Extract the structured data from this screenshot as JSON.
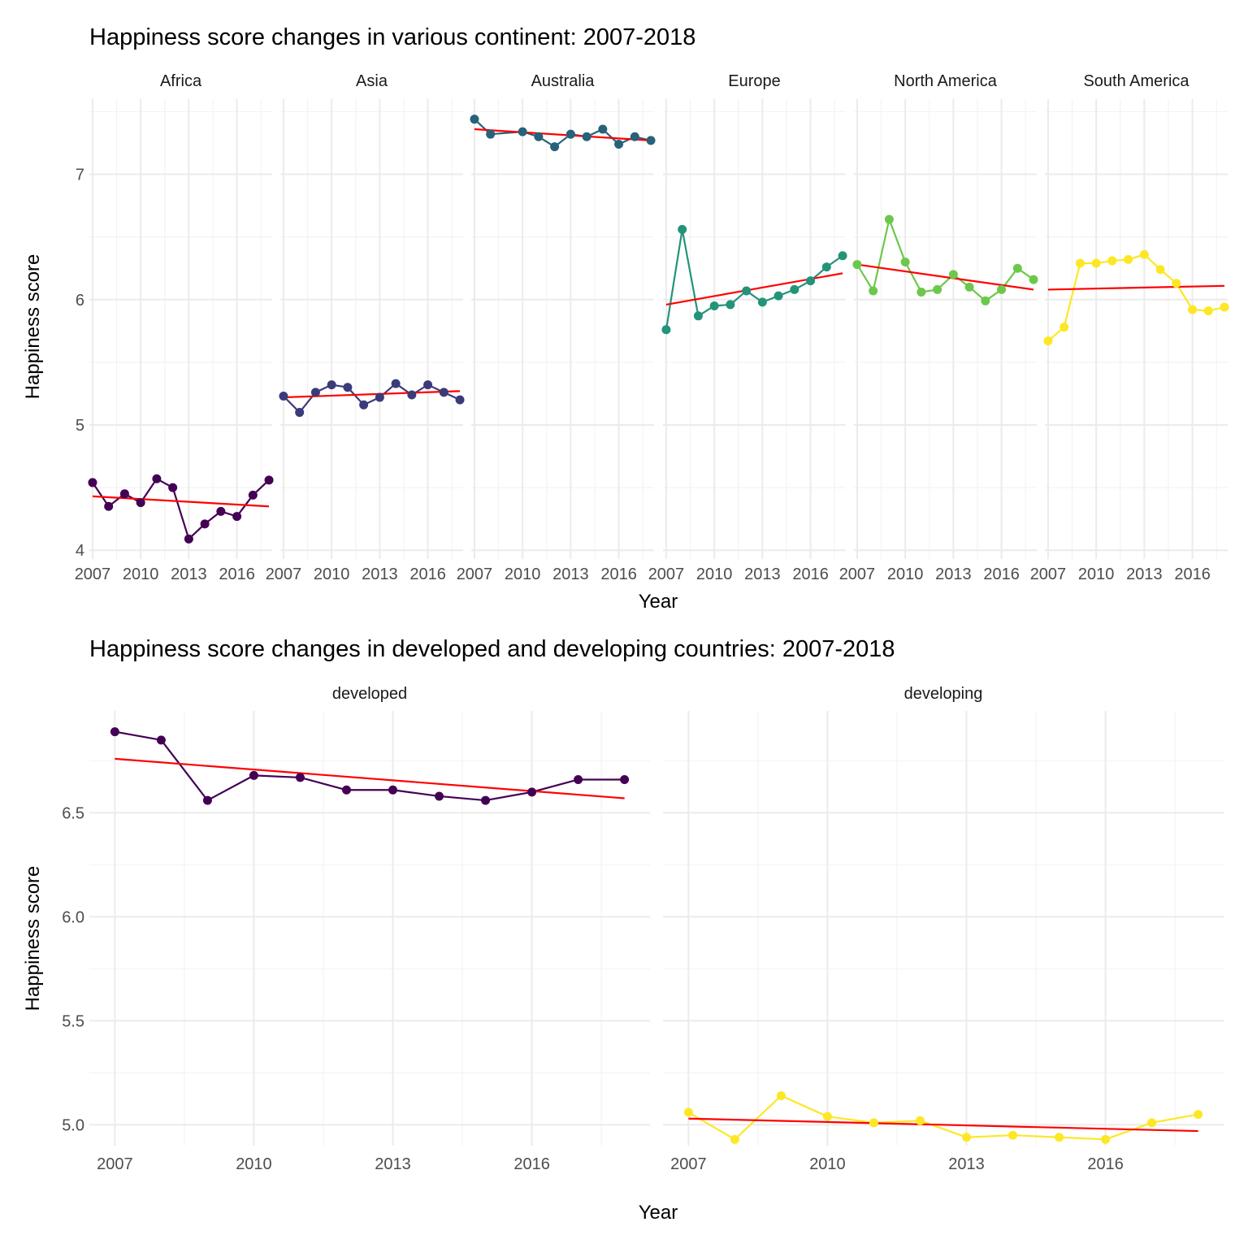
{
  "colors": {
    "trend": "#ff0000",
    "grid_major": "#ebebeb",
    "grid_minor": "#f3f3f3"
  },
  "chart_data": [
    {
      "type": "line",
      "title": "Happiness score changes in various continent: 2007-2018",
      "xlabel": "Year",
      "ylabel": "Happiness score",
      "x_ticks": [
        2007,
        2010,
        2013,
        2016
      ],
      "x_tick_labels": [
        "2007",
        "2010",
        "2013",
        "2016"
      ],
      "y_ticks": [
        4,
        5,
        6,
        7
      ],
      "y_tick_labels": [
        "4",
        "5",
        "6",
        "7"
      ],
      "xlim": [
        2006.8,
        2018.2
      ],
      "ylim": [
        3.93,
        7.6
      ],
      "x": [
        2007,
        2008,
        2009,
        2010,
        2011,
        2012,
        2013,
        2014,
        2015,
        2016,
        2017,
        2018
      ],
      "trend_note": "red line = linear fit per panel",
      "series": [
        {
          "name": "Africa",
          "color": "#440154",
          "values": [
            4.54,
            4.35,
            4.45,
            4.38,
            4.57,
            4.5,
            4.09,
            4.21,
            4.31,
            4.27,
            4.44,
            4.56
          ],
          "trend": [
            4.43,
            4.35
          ]
        },
        {
          "name": "Asia",
          "color": "#3b3b7a",
          "values": [
            5.23,
            5.1,
            5.26,
            5.32,
            5.3,
            5.16,
            5.22,
            5.33,
            5.24,
            5.32,
            5.26,
            5.2
          ],
          "trend": [
            5.22,
            5.27
          ]
        },
        {
          "name": "Australia",
          "color": "#27627a",
          "values": [
            7.44,
            7.32,
            null,
            7.34,
            7.3,
            7.22,
            7.32,
            7.3,
            7.36,
            7.24,
            7.3,
            7.27
          ],
          "trend": [
            7.36,
            7.27
          ]
        },
        {
          "name": "Europe",
          "color": "#23937a",
          "values": [
            5.76,
            6.56,
            5.87,
            5.95,
            5.96,
            6.07,
            5.98,
            6.03,
            6.08,
            6.15,
            6.26,
            6.35
          ],
          "trend": [
            5.96,
            6.21
          ]
        },
        {
          "name": "North America",
          "color": "#6cc84b",
          "values": [
            6.28,
            6.07,
            6.64,
            6.3,
            6.06,
            6.08,
            6.2,
            6.1,
            5.99,
            6.08,
            6.25,
            6.16
          ],
          "trend": [
            6.28,
            6.08
          ]
        },
        {
          "name": "South America",
          "color": "#fde725",
          "values": [
            5.67,
            5.78,
            6.29,
            6.29,
            6.31,
            6.32,
            6.36,
            6.24,
            6.13,
            5.92,
            5.91,
            5.94
          ],
          "trend": [
            6.08,
            6.11
          ]
        }
      ]
    },
    {
      "type": "line",
      "title": "Happiness score changes in developed and developing countries: 2007-2018",
      "xlabel": "Year",
      "ylabel": "Happiness score",
      "x_ticks": [
        2007,
        2010,
        2013,
        2016
      ],
      "x_tick_labels": [
        "2007",
        "2010",
        "2013",
        "2016"
      ],
      "y_ticks": [
        5.0,
        5.5,
        6.0,
        6.5
      ],
      "y_tick_labels": [
        "5.0",
        "5.5",
        "6.0",
        "6.5"
      ],
      "xlim": [
        2006.45,
        2018.55
      ],
      "ylim": [
        4.9,
        6.99
      ],
      "x": [
        2007,
        2008,
        2009,
        2010,
        2011,
        2012,
        2013,
        2014,
        2015,
        2016,
        2017,
        2018
      ],
      "trend_note": "red line = linear fit per panel",
      "series": [
        {
          "name": "developed",
          "color": "#440154",
          "values": [
            6.89,
            6.85,
            6.56,
            6.68,
            6.67,
            6.61,
            6.61,
            6.58,
            6.56,
            6.6,
            6.66,
            6.66
          ],
          "trend": [
            6.76,
            6.57
          ]
        },
        {
          "name": "developing",
          "color": "#fde725",
          "values": [
            5.06,
            4.93,
            5.14,
            5.04,
            5.01,
            5.02,
            4.94,
            4.95,
            4.94,
            4.93,
            5.01,
            5.05
          ],
          "trend": [
            5.03,
            4.97
          ]
        }
      ]
    }
  ]
}
